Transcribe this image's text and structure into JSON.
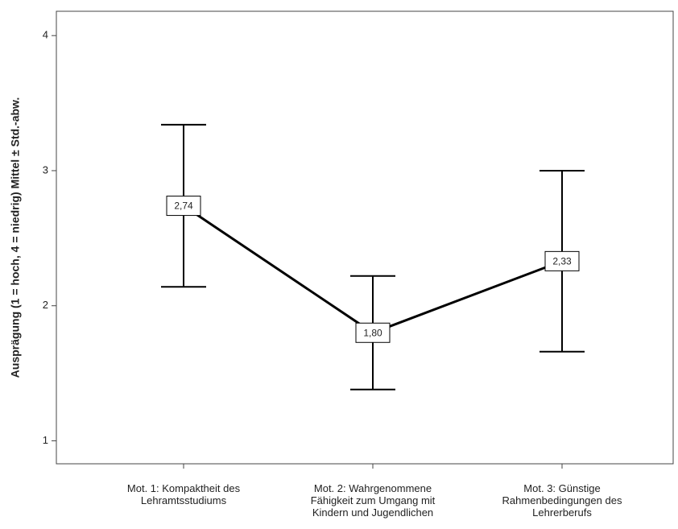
{
  "chart_data": {
    "type": "line",
    "y_label": "Ausprägung (1 = hoch, 4 = niedrig) Mittel ± Std.-abw.",
    "categories": [
      "Mot. 1: Kompaktheit des\nLehramtsstudiums",
      "Mot. 2: Wahrgenommene\nFähigkeit zum Umgang mit\nKindern und Jugendlichen",
      "Mot. 3: Günstige\nRahmenbedingungen des\nLehrerberufs"
    ],
    "values": [
      2.74,
      1.8,
      2.33
    ],
    "value_labels": [
      "2,74",
      "1,80",
      "2,33"
    ],
    "errors": [
      0.6,
      0.42,
      0.67
    ],
    "color": "#000000",
    "ylim": [
      0.83,
      4.18
    ],
    "yticks": [
      1,
      2,
      3,
      4
    ],
    "grid": false
  }
}
